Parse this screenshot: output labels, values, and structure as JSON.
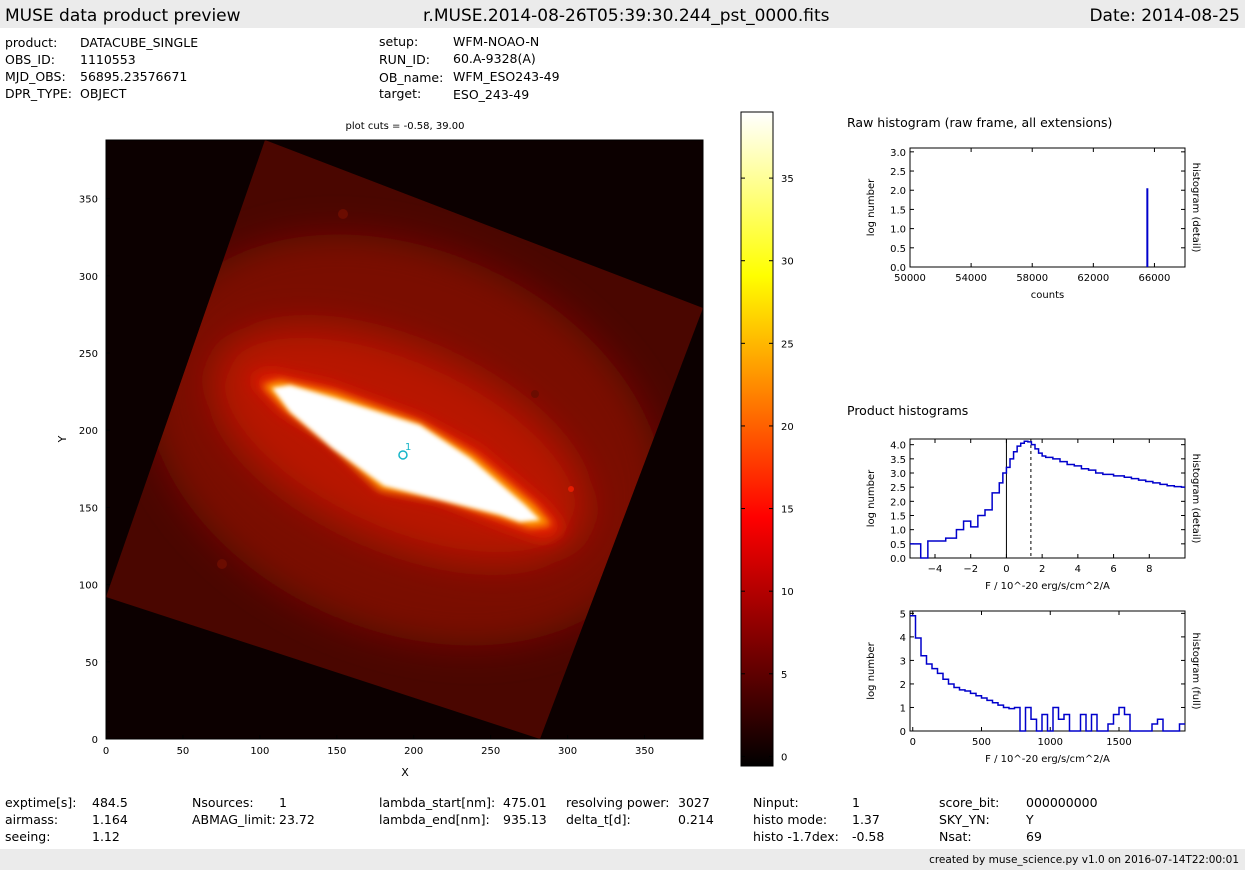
{
  "header": {
    "title": "MUSE data product preview",
    "filename": "r.MUSE.2014-08-26T05:39:30.244_pst_0000.fits",
    "date": "Date: 2014-08-25"
  },
  "meta_left": [
    {
      "key": "product:",
      "value": "DATACUBE_SINGLE"
    },
    {
      "key": "OBS_ID:",
      "value": "1110553"
    },
    {
      "key": "MJD_OBS:",
      "value": "56895.23576671"
    },
    {
      "key": "DPR_TYPE:",
      "value": "OBJECT"
    }
  ],
  "meta_right": [
    {
      "key": "setup:",
      "value": "WFM-NOAO-N"
    },
    {
      "key": "RUN_ID:",
      "value": "60.A-9328(A)"
    },
    {
      "key": "OB_name:",
      "value": "WFM_ESO243-49"
    },
    {
      "key": "target:",
      "value": "ESO_243-49"
    }
  ],
  "footer_stats": [
    [
      {
        "key": "exptime[s]:",
        "value": "484.5"
      },
      {
        "key": "airmass:",
        "value": "1.164"
      },
      {
        "key": "seeing:",
        "value": "1.12"
      }
    ],
    [
      {
        "key": "Nsources:",
        "value": "1"
      },
      {
        "key": "ABMAG_limit:",
        "value": "23.72"
      }
    ],
    [
      {
        "key": "lambda_start[nm]:",
        "value": "475.01"
      },
      {
        "key": "lambda_end[nm]:",
        "value": "935.13"
      }
    ],
    [
      {
        "key": "resolving power:",
        "value": "3027"
      },
      {
        "key": "delta_t[d]:",
        "value": "0.214"
      }
    ],
    [
      {
        "key": "Ninput:",
        "value": "1"
      },
      {
        "key": "histo mode:",
        "value": "1.37"
      },
      {
        "key": "histo -1.7dex:",
        "value": "-0.58"
      }
    ],
    [
      {
        "key": "score_bit:",
        "value": "000000000"
      },
      {
        "key": "SKY_YN:",
        "value": "Y"
      },
      {
        "key": "Nsat:",
        "value": "69"
      }
    ]
  ],
  "footer_note": "created by muse_science.py v1.0 on 2016-07-14T22:00:01",
  "colors": {
    "hist_line": "#0000cc",
    "source_marker": "#17b5c8",
    "bar_bg": "#ebebeb"
  },
  "chart_data": [
    {
      "type": "heatmap",
      "title": "plot cuts = -0.58, 39.00",
      "xlabel": "X",
      "ylabel": "Y",
      "xlim": [
        0,
        388
      ],
      "ylim": [
        0,
        388
      ],
      "xticks": [
        0,
        50,
        100,
        150,
        200,
        250,
        300,
        350
      ],
      "yticks": [
        0,
        50,
        100,
        150,
        200,
        250,
        300,
        350
      ],
      "colorbar": {
        "range": [
          -0.58,
          39.0
        ],
        "ticks": [
          0,
          5,
          10,
          15,
          20,
          25,
          30,
          35
        ],
        "colormap": "hot"
      },
      "sources": [
        {
          "label": "1",
          "x": 193,
          "y": 184
        }
      ]
    },
    {
      "type": "bar",
      "title": "Raw histogram (raw frame, all extensions)",
      "xlabel": "counts",
      "ylabel": "log number",
      "right_label": "histogram (detail)",
      "xlim": [
        50000,
        68000
      ],
      "ylim": [
        0,
        3.1
      ],
      "xticks": [
        50000,
        54000,
        58000,
        62000,
        66000
      ],
      "yticks": [
        0.0,
        0.5,
        1.0,
        1.5,
        2.0,
        2.5,
        3.0
      ],
      "bars": [
        {
          "x": 65535,
          "value": 2.05
        }
      ]
    },
    {
      "type": "line",
      "title": "Product histograms",
      "xlabel": "F / 10^-20 erg/s/cm^2/A",
      "ylabel": "log number",
      "right_label": "histogram (detail)",
      "xlim": [
        -5.4,
        10
      ],
      "ylim": [
        0,
        4.2
      ],
      "xticks": [
        -4,
        -2,
        0,
        2,
        4,
        6,
        8
      ],
      "yticks": [
        0.0,
        0.5,
        1.0,
        1.5,
        2.0,
        2.5,
        3.0,
        3.5,
        4.0
      ],
      "vlines": [
        {
          "x": 0,
          "style": "solid"
        },
        {
          "x": 1.37,
          "style": "dotted"
        }
      ],
      "x": [
        -5.4,
        -4.8,
        -4.4,
        -3.8,
        -3.4,
        -2.8,
        -2.4,
        -2.0,
        -1.6,
        -1.2,
        -0.8,
        -0.4,
        -0.2,
        0.0,
        0.2,
        0.4,
        0.6,
        0.8,
        1.0,
        1.2,
        1.4,
        1.6,
        1.8,
        2.0,
        2.2,
        2.6,
        3.0,
        3.4,
        3.8,
        4.2,
        4.6,
        5.0,
        5.4,
        6.0,
        6.6,
        7.0,
        7.4,
        7.8,
        8.2,
        8.6,
        9.0,
        9.4,
        9.8,
        10.0
      ],
      "y": [
        0.5,
        0.0,
        0.6,
        0.6,
        0.7,
        1.0,
        1.3,
        1.1,
        1.5,
        1.7,
        2.3,
        2.65,
        3.0,
        3.2,
        3.5,
        3.75,
        3.95,
        4.05,
        4.12,
        4.1,
        4.0,
        3.85,
        3.7,
        3.6,
        3.55,
        3.5,
        3.4,
        3.3,
        3.25,
        3.15,
        3.1,
        3.0,
        2.95,
        2.9,
        2.85,
        2.8,
        2.75,
        2.7,
        2.65,
        2.6,
        2.55,
        2.52,
        2.5,
        2.5
      ]
    },
    {
      "type": "line",
      "title": "",
      "xlabel": "F / 10^-20 erg/s/cm^2/A",
      "ylabel": "log number",
      "right_label": "histogram (full)",
      "xlim": [
        -20,
        1980
      ],
      "ylim": [
        0,
        5.1
      ],
      "xticks": [
        0,
        500,
        1000,
        1500
      ],
      "yticks": [
        0,
        1,
        2,
        3,
        4,
        5
      ],
      "x": [
        -20,
        20,
        60,
        100,
        140,
        180,
        220,
        260,
        300,
        340,
        380,
        420,
        460,
        500,
        540,
        580,
        620,
        660,
        700,
        740,
        780,
        820,
        860,
        900,
        940,
        980,
        1020,
        1060,
        1100,
        1140,
        1180,
        1220,
        1260,
        1300,
        1340,
        1380,
        1420,
        1460,
        1500,
        1540,
        1580,
        1620,
        1660,
        1700,
        1740,
        1780,
        1820,
        1860,
        1900,
        1940,
        1980
      ],
      "y": [
        4.9,
        3.95,
        3.2,
        2.85,
        2.65,
        2.45,
        2.2,
        2.0,
        1.85,
        1.75,
        1.7,
        1.6,
        1.5,
        1.4,
        1.3,
        1.2,
        1.1,
        1.0,
        0.95,
        1.0,
        0.0,
        1.0,
        0.5,
        0.0,
        0.7,
        0.0,
        1.0,
        0.5,
        0.7,
        0.0,
        0.0,
        0.7,
        0.0,
        0.7,
        0.0,
        0.0,
        0.3,
        0.7,
        1.0,
        0.7,
        0.0,
        0.0,
        0.0,
        0.0,
        0.3,
        0.5,
        0.0,
        0.0,
        0.0,
        0.3,
        0.3
      ]
    }
  ]
}
